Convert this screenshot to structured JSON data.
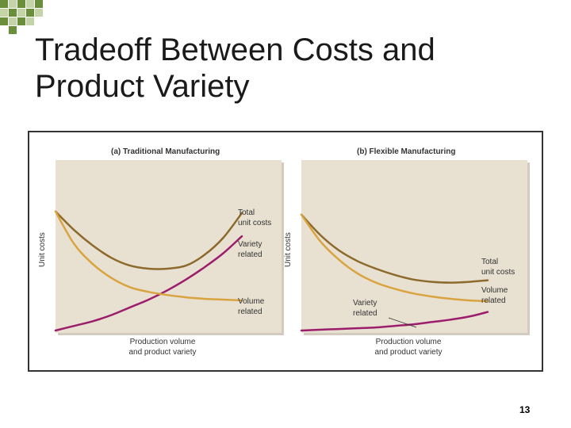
{
  "slide": {
    "title_line1": "Tradeoff Between Costs and",
    "title_line2": "Product Variety",
    "page_number": "13"
  },
  "colors": {
    "panel_bg": "#e8e0d0",
    "total_cost": "#8b6a2c",
    "volume_related": "#d9a440",
    "variety_related": "#9b1d6c",
    "checker_green": "#6b8e3a"
  },
  "chart_data": [
    {
      "type": "line",
      "title": "(a) Traditional Manufacturing",
      "xlabel": "Production volume and product variety",
      "xlabel_lines": [
        "Production volume",
        "and product variety"
      ],
      "ylabel": "Unit costs",
      "xlim": [
        0,
        10
      ],
      "ylim": [
        0,
        10
      ],
      "grid": false,
      "series": [
        {
          "name": "Total unit costs",
          "label_lines": [
            "Total",
            "unit costs"
          ],
          "color": "#8b6a2c",
          "x": [
            0,
            1,
            2,
            3,
            4,
            5,
            6,
            7,
            8,
            9,
            10
          ],
          "y": [
            7.7,
            6.5,
            5.5,
            4.7,
            4.2,
            4.0,
            4.0,
            4.2,
            4.9,
            6.0,
            7.6
          ]
        },
        {
          "name": "Variety related",
          "label_lines": [
            "Variety",
            "related"
          ],
          "color": "#9b1d6c",
          "x": [
            0,
            1,
            2,
            3,
            4,
            5,
            6,
            7,
            8,
            9,
            10
          ],
          "y": [
            0.0,
            0.3,
            0.6,
            1.0,
            1.5,
            2.0,
            2.6,
            3.3,
            4.1,
            5.0,
            6.1
          ]
        },
        {
          "name": "Volume related",
          "label_lines": [
            "Volume",
            "related"
          ],
          "color": "#d9a440",
          "x": [
            0,
            1,
            2,
            3,
            4,
            5,
            6,
            7,
            8,
            9,
            10
          ],
          "y": [
            7.7,
            5.6,
            4.3,
            3.4,
            2.8,
            2.5,
            2.3,
            2.15,
            2.05,
            2.0,
            1.95
          ]
        }
      ]
    },
    {
      "type": "line",
      "title": "(b) Flexible Manufacturing",
      "xlabel": "Production volume and product variety",
      "xlabel_lines": [
        "Production volume",
        "and product variety"
      ],
      "ylabel": "Unit costs",
      "xlim": [
        0,
        10
      ],
      "ylim": [
        0,
        10
      ],
      "grid": false,
      "series": [
        {
          "name": "Total unit costs",
          "label_lines": [
            "Total",
            "unit costs"
          ],
          "color": "#8b6a2c",
          "x": [
            0,
            1,
            2,
            3,
            4,
            5,
            6,
            7,
            8,
            9,
            10
          ],
          "y": [
            7.5,
            6.2,
            5.2,
            4.5,
            4.0,
            3.6,
            3.3,
            3.15,
            3.1,
            3.15,
            3.25
          ]
        },
        {
          "name": "Variety related",
          "label_lines": [
            "Variety",
            "related"
          ],
          "color": "#9b1d6c",
          "x": [
            0,
            1,
            2,
            3,
            4,
            5,
            6,
            7,
            8,
            9,
            10
          ],
          "y": [
            0.0,
            0.05,
            0.1,
            0.15,
            0.2,
            0.3,
            0.4,
            0.55,
            0.7,
            0.9,
            1.2
          ]
        },
        {
          "name": "Volume related",
          "label_lines": [
            "Volume",
            "related"
          ],
          "color": "#d9a440",
          "x": [
            0,
            1,
            2,
            3,
            4,
            5,
            6,
            7,
            8,
            9,
            10
          ],
          "y": [
            7.5,
            5.8,
            4.6,
            3.7,
            3.1,
            2.7,
            2.4,
            2.2,
            2.05,
            1.95,
            1.9
          ]
        }
      ]
    }
  ]
}
